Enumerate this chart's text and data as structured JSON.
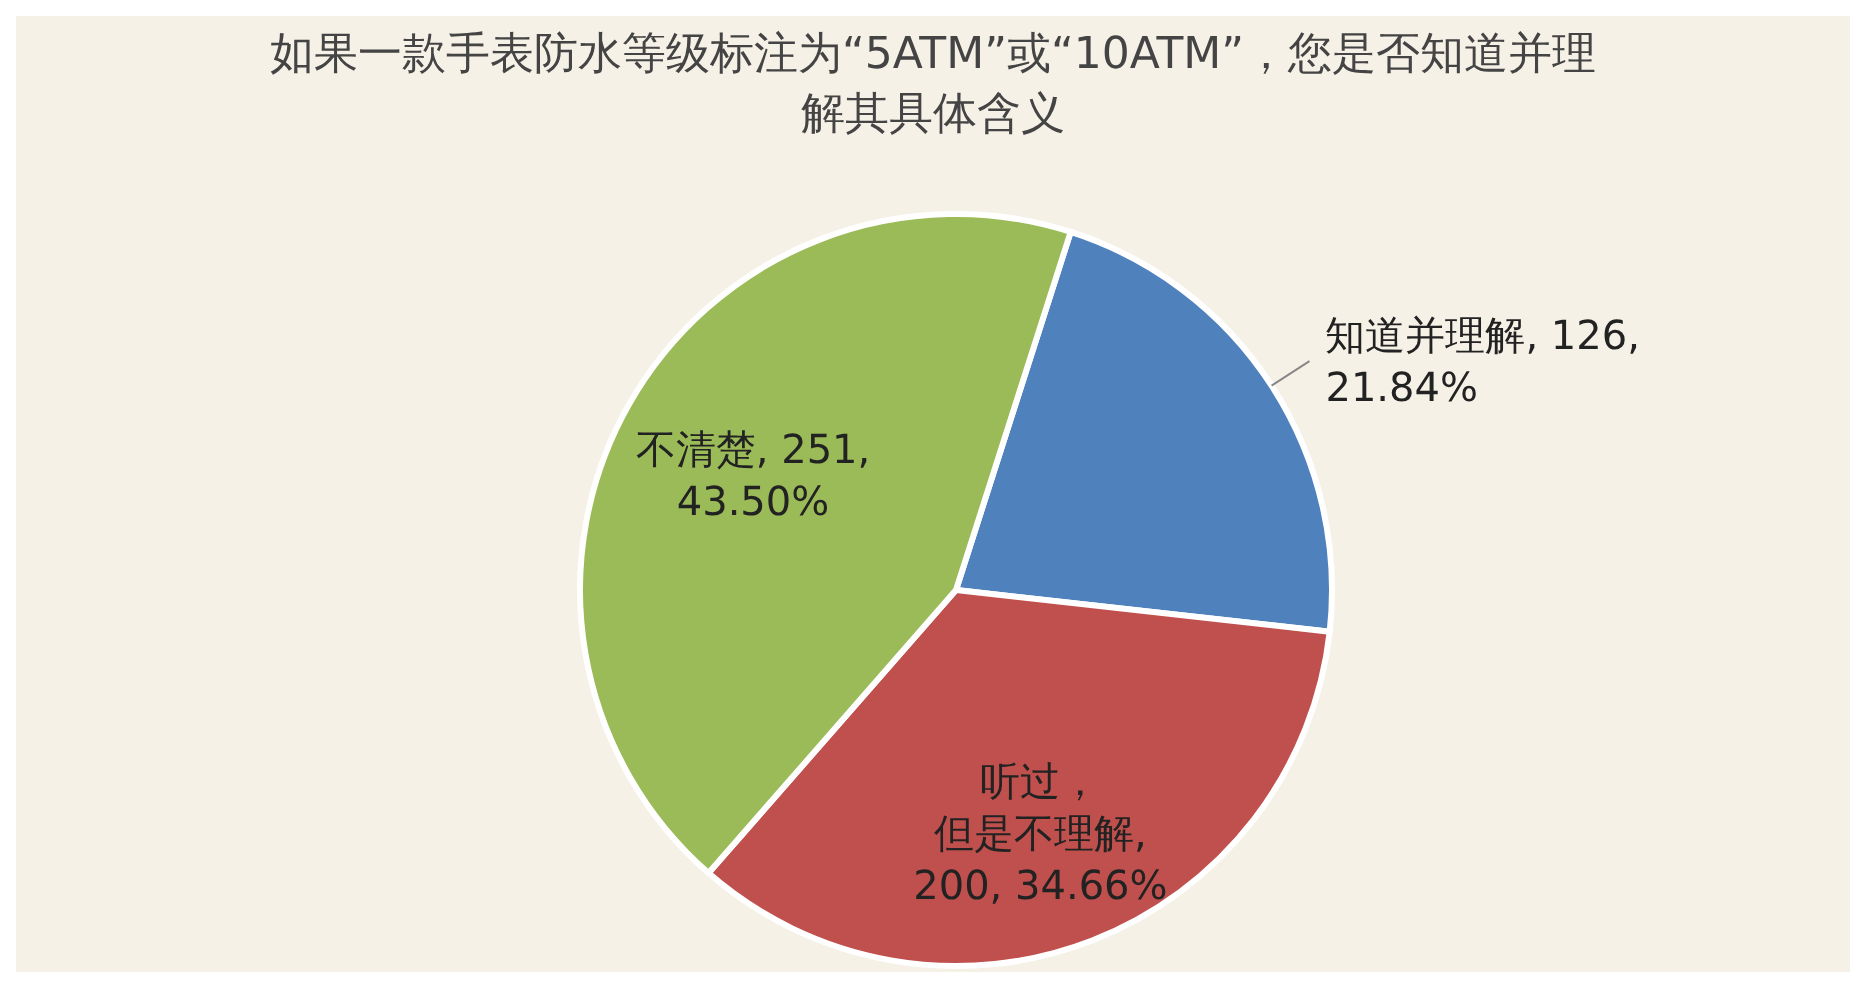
{
  "chart_data": {
    "type": "pie",
    "title": "如果一款手表防水等级标注为“5ATM”或“10ATM”，您是否知道并理解其具体含义",
    "categories": [
      "知道并理解",
      "听过，但是不理解",
      "不清楚"
    ],
    "values": [
      126,
      200,
      251
    ],
    "colors": [
      "#4f81bd",
      "#c0504d",
      "#9bbb59"
    ],
    "value_labels": [
      ", 126, 21.84%",
      ", 200, 34.66%",
      ", 251, 43.50%"
    ]
  }
}
